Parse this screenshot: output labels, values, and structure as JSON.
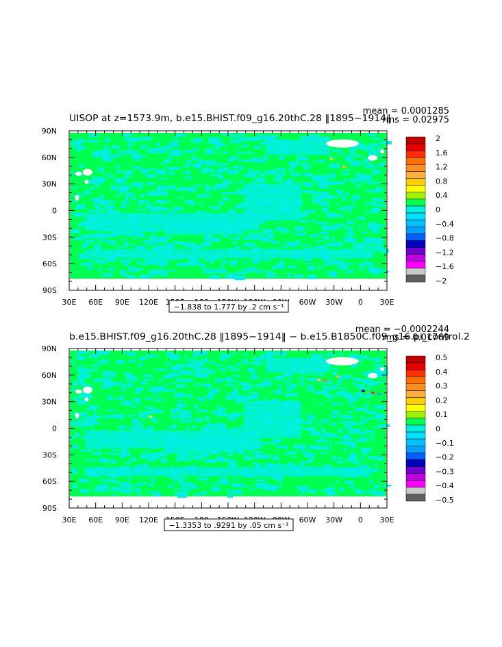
{
  "chart_data": [
    {
      "type": "heatmap",
      "title": "UISOP at z=1573.9m, b.e15.BHIST.f09_g16.20thC.28 ‖1895−1914‖",
      "stats": {
        "mean": "mean = 0.0001285",
        "rms": "rms = 0.02975"
      },
      "xticks": [
        "30E",
        "60E",
        "90E",
        "120E",
        "150E",
        "180",
        "150W",
        "120W",
        "90W",
        "60W",
        "30W",
        "0",
        "30E"
      ],
      "yticks": [
        "90N",
        "60N",
        "30N",
        "0",
        "30S",
        "60S",
        "90S"
      ],
      "range_label": "−1.838 to 1.777 by .2 cm s⁻¹",
      "colorbar": {
        "labels": [
          "2",
          "1.6",
          "1.2",
          "0.8",
          "0.4",
          "0",
          "−0.4",
          "−0.8",
          "−1.2",
          "−1.6",
          "−2"
        ],
        "colors": [
          "#c00000",
          "#e80000",
          "#ff3000",
          "#ff7000",
          "#ff9020",
          "#ffb040",
          "#ffd000",
          "#ffff00",
          "#a0f000",
          "#00ff50",
          "#00f0e0",
          "#00e0ff",
          "#00c0ff",
          "#00a0ff",
          "#0060ff",
          "#0000c0",
          "#7000d0",
          "#c000e0",
          "#ff00ff",
          "#c8c8c8",
          "#606060"
        ]
      },
      "field": {
        "background": "#00ff50",
        "secondary": "#00f0e0"
      }
    },
    {
      "type": "heatmap",
      "title": "b.e15.BHIST.f09_g16.20thC.28 ‖1895−1914‖ − b.e15.B1850C.f09_g16.pi_control.2",
      "stats": {
        "mean": "mean = −0.0002244",
        "rms": "rms = 0.01769"
      },
      "xticks": [
        "30E",
        "60E",
        "90E",
        "120E",
        "150E",
        "180",
        "150W",
        "120W",
        "90W",
        "60W",
        "30W",
        "0",
        "30E"
      ],
      "yticks": [
        "90N",
        "60N",
        "30N",
        "0",
        "30S",
        "60S",
        "90S"
      ],
      "range_label": "−1.3353 to .9291 by .05 cm s⁻¹",
      "colorbar": {
        "labels": [
          "0.5",
          "0.4",
          "0.3",
          "0.2",
          "0.1",
          "0",
          "−0.1",
          "−0.2",
          "−0.3",
          "−0.4",
          "−0.5"
        ],
        "colors": [
          "#c00000",
          "#e80000",
          "#ff3000",
          "#ff7000",
          "#ff9020",
          "#ffb040",
          "#ffd000",
          "#ffff00",
          "#a0f000",
          "#00ff50",
          "#00f0e0",
          "#00e0ff",
          "#00c0ff",
          "#00a0ff",
          "#0060ff",
          "#0000c0",
          "#7000d0",
          "#c000e0",
          "#ff00ff",
          "#c8c8c8",
          "#606060"
        ]
      },
      "field": {
        "background": "#00ff50",
        "secondary": "#00f0e0"
      }
    }
  ]
}
